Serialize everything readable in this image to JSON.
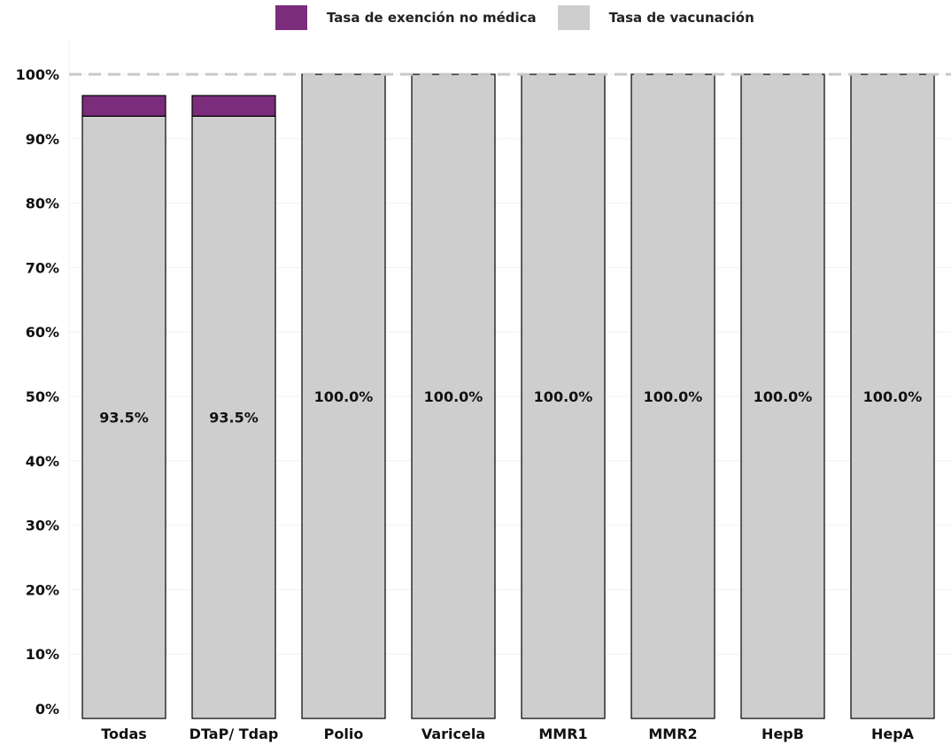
{
  "chart_data": {
    "type": "bar",
    "stacked": true,
    "categories": [
      "Todas",
      "DTaP/ Tdap",
      "Polio",
      "Varicela",
      "MMR1",
      "MMR2",
      "HepB",
      "HepA"
    ],
    "series": [
      {
        "name": "Tasa de vacunación",
        "values": [
          93.5,
          93.5,
          100.0,
          100.0,
          100.0,
          100.0,
          100.0,
          100.0
        ],
        "labels": [
          "93.5%",
          "93.5%",
          "100.0%",
          "100.0%",
          "100.0%",
          "100.0%",
          "100.0%",
          "100.0%"
        ],
        "color": "#cecece"
      },
      {
        "name": "Tasa de exención no médica",
        "values": [
          3.2,
          3.2,
          0,
          0,
          0,
          0,
          0,
          0
        ],
        "color": "#7b2d7b"
      }
    ],
    "ylim": [
      0,
      100
    ],
    "yticks": [
      "0%",
      "10%",
      "20%",
      "30%",
      "40%",
      "50%",
      "60%",
      "70%",
      "80%",
      "90%",
      "100%"
    ],
    "reference_line": 100,
    "grid": true,
    "legend_position": "top"
  },
  "legend": [
    {
      "label": "Tasa de exención no médica",
      "color": "#7b2d7b"
    },
    {
      "label": "Tasa de vacunación",
      "color": "#cecece"
    }
  ]
}
